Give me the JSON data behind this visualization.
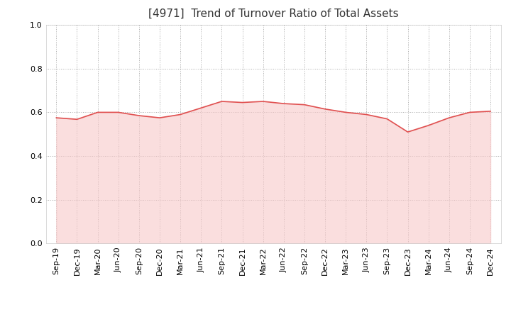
{
  "title": "[4971]  Trend of Turnover Ratio of Total Assets",
  "x_labels": [
    "Sep-19",
    "Dec-19",
    "Mar-20",
    "Jun-20",
    "Sep-20",
    "Dec-20",
    "Mar-21",
    "Jun-21",
    "Sep-21",
    "Dec-21",
    "Mar-22",
    "Jun-22",
    "Sep-22",
    "Dec-22",
    "Mar-23",
    "Jun-23",
    "Sep-23",
    "Dec-23",
    "Mar-24",
    "Jun-24",
    "Sep-24",
    "Dec-24"
  ],
  "y_values": [
    0.575,
    0.568,
    0.6,
    0.6,
    0.585,
    0.575,
    0.59,
    0.62,
    0.65,
    0.645,
    0.65,
    0.64,
    0.635,
    0.615,
    0.6,
    0.59,
    0.57,
    0.51,
    0.54,
    0.575,
    0.6,
    0.605
  ],
  "line_color": "#e05050",
  "fill_color": "#f7c8c8",
  "ylim": [
    0.0,
    1.0
  ],
  "yticks": [
    0.0,
    0.2,
    0.4,
    0.6,
    0.8,
    1.0
  ],
  "title_fontsize": 11,
  "tick_fontsize": 8,
  "background_color": "#ffffff",
  "grid_color": "#aaaaaa"
}
